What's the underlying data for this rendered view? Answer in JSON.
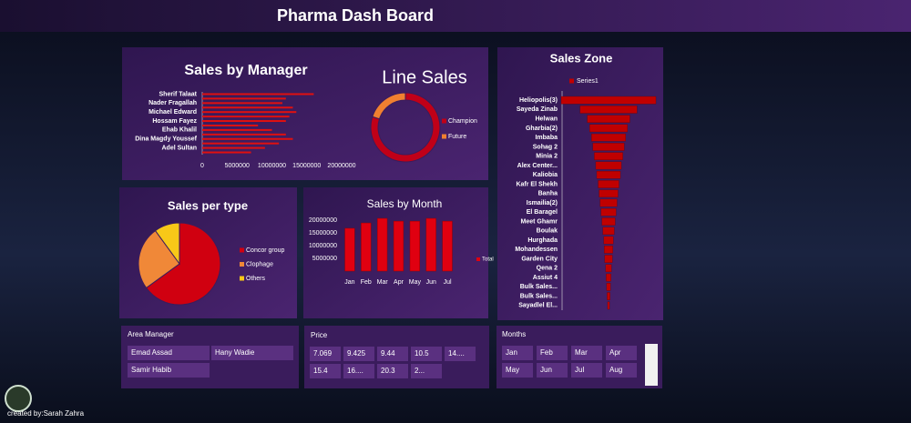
{
  "header": {
    "title": "Pharma Dash Board"
  },
  "chart_data": [
    {
      "type": "hbar",
      "title": "Sales by Manager",
      "categories": [
        "Sherif Talaat",
        null,
        "Nader Fragallah",
        null,
        "Michael Edward",
        null,
        "Hossam Fayez",
        null,
        "Ehab Khalil",
        null,
        "Dina Magdy Youssef",
        null,
        "Adel Sultan",
        null
      ],
      "values": [
        16000000,
        12000000,
        11500000,
        13000000,
        13500000,
        12500000,
        12000000,
        8000000,
        10000000,
        12000000,
        13000000,
        11000000,
        9000000,
        7000000
      ],
      "color": "#e01010",
      "xlim": [
        0,
        20000000
      ],
      "xticks": [
        0,
        5000000,
        10000000,
        15000000,
        20000000
      ]
    },
    {
      "type": "donut",
      "title": "Line Sales",
      "categories": [
        "Champion",
        "Future"
      ],
      "values": [
        80,
        20
      ],
      "colors": [
        "#c00018",
        "#f08030"
      ],
      "legend": "right"
    },
    {
      "type": "funnel",
      "title": "Sales Zone",
      "categories": [
        "Heliopolis(3)",
        "Sayeda Zinab",
        "Helwan",
        "Gharbia(2)",
        "Imbaba",
        "Sohag 2",
        "Minia 2",
        "Alex Center...",
        "Kaliobia",
        "Kafr El Shekh",
        "Banha",
        "Ismailia(2)",
        "El Baragel",
        "Meet Ghamr",
        "Boulak",
        "Hurghada",
        "Mohandessen",
        "Garden City",
        "Qena 2",
        "Assiut 4",
        "Bulk Sales...",
        "Bulk Sales...",
        "Sayadlel El..."
      ],
      "series": [
        {
          "name": "Series1",
          "color": "#c00000",
          "values": [
            100,
            60,
            45,
            40,
            36,
            33,
            30,
            27,
            25,
            22,
            20,
            18,
            16,
            14,
            12,
            10,
            9,
            8,
            6,
            5,
            4,
            3,
            2
          ]
        }
      ],
      "xlim": [
        0,
        100
      ],
      "legend": "top"
    },
    {
      "type": "pie",
      "title": "Sales per type",
      "categories": [
        "Concor group",
        "Clophage",
        "Others"
      ],
      "values": [
        65,
        25,
        10
      ],
      "colors": [
        "#d00010",
        "#f08838",
        "#f8c818"
      ],
      "legend": "right"
    },
    {
      "type": "bar",
      "title": "Sales by Month",
      "categories": [
        "Jan",
        "Feb",
        "Mar",
        "Apr",
        "May",
        "Jun",
        "Jul"
      ],
      "series": [
        {
          "name": "Total",
          "color": "#e00010",
          "values": [
            16800000,
            18900000,
            20700000,
            19600000,
            19600000,
            20700000,
            19600000
          ]
        }
      ],
      "ylim": [
        0,
        22000000
      ],
      "yticks": [
        5000000,
        10000000,
        15000000,
        20000000
      ],
      "legend": "right"
    }
  ],
  "slicers": [
    {
      "title": "Area Manager",
      "items": [
        "Emad Assad",
        "Hany Wadie",
        "Samir Habib"
      ]
    },
    {
      "title": "Price",
      "items": [
        "7.069",
        "9.425",
        "9.44",
        "10.5",
        "14....",
        "15.4",
        "16....",
        "20.3",
        "2..."
      ]
    },
    {
      "title": "Months",
      "items": [
        "Jan",
        "Feb",
        "Mar",
        "Apr",
        "May",
        "Jun",
        "Jul",
        "Aug"
      ]
    }
  ],
  "footer": {
    "credit": "created by:Sarah Zahra"
  }
}
